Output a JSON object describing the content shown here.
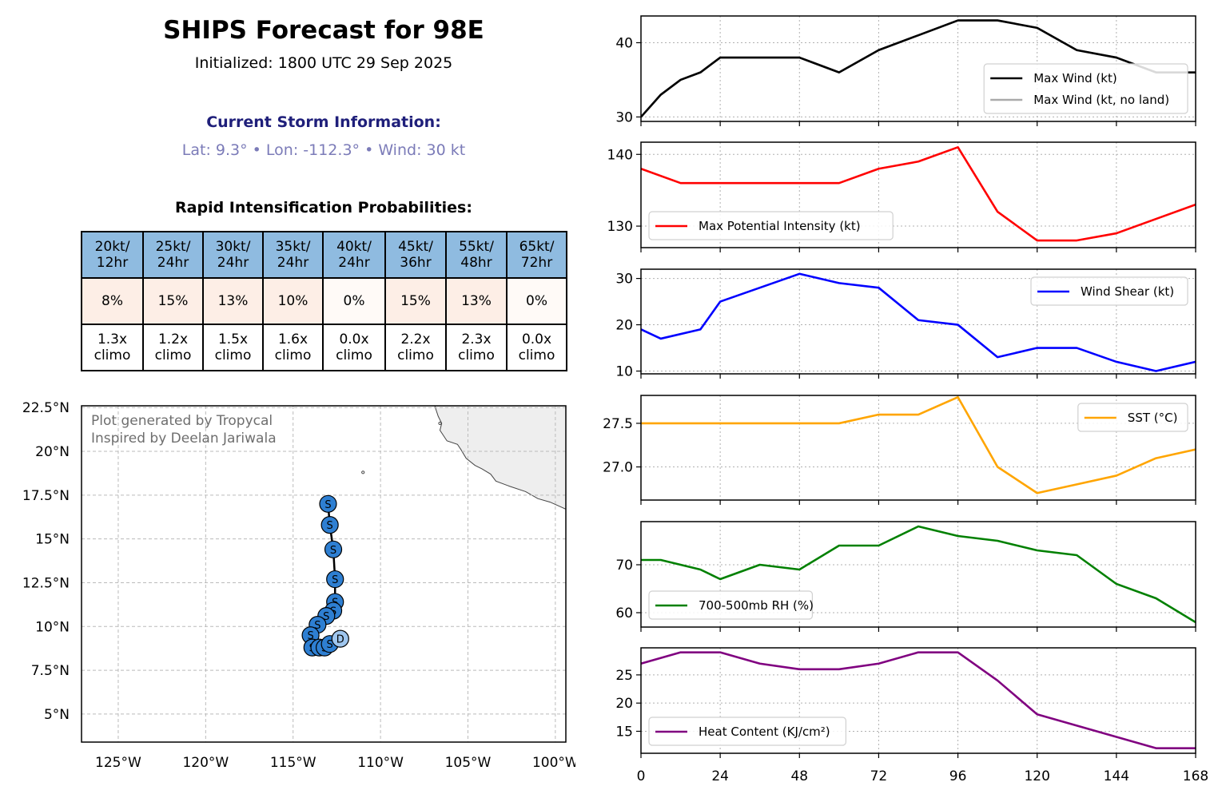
{
  "header": {
    "title": "SHIPS Forecast for 98E",
    "subtitle": "Initialized: 1800 UTC 29 Sep 2025",
    "storm_heading": "Current Storm Information:",
    "storm_info": "Lat: 9.3° • Lon: -112.3° • Wind: 30 kt",
    "ri_heading": "Rapid Intensification Probabilities:"
  },
  "colors": {
    "header_cell": "#8fbbe0",
    "prob_high": "#fdeee6",
    "prob_low": "#fffaf7",
    "storm_heading": "#1f1f7a",
    "storm_info": "#7b7bb8",
    "track_point": "#2e7fd2",
    "track_point_light": "#9fc6ee",
    "land": "#eeeeee"
  },
  "ri_table": {
    "headers": [
      [
        "20kt/",
        "12hr"
      ],
      [
        "25kt/",
        "24hr"
      ],
      [
        "30kt/",
        "24hr"
      ],
      [
        "35kt/",
        "24hr"
      ],
      [
        "40kt/",
        "24hr"
      ],
      [
        "45kt/",
        "36hr"
      ],
      [
        "55kt/",
        "48hr"
      ],
      [
        "65kt/",
        "72hr"
      ]
    ],
    "probabilities": [
      "8%",
      "15%",
      "13%",
      "10%",
      "0%",
      "15%",
      "13%",
      "0%"
    ],
    "prob_shade": [
      "high",
      "high",
      "high",
      "high",
      "low",
      "high",
      "high",
      "low"
    ],
    "climo": [
      [
        "1.3x",
        "climo"
      ],
      [
        "1.2x",
        "climo"
      ],
      [
        "1.5x",
        "climo"
      ],
      [
        "1.6x",
        "climo"
      ],
      [
        "0.0x",
        "climo"
      ],
      [
        "2.2x",
        "climo"
      ],
      [
        "2.3x",
        "climo"
      ],
      [
        "0.0x",
        "climo"
      ]
    ]
  },
  "map": {
    "credit_lines": [
      "Plot generated by Tropycal",
      "Inspired by Deelan Jariwala"
    ],
    "lat_ticks": [
      {
        "v": 5,
        "label": "5°N"
      },
      {
        "v": 7.5,
        "label": "7.5°N"
      },
      {
        "v": 10,
        "label": "10°N"
      },
      {
        "v": 12.5,
        "label": "12.5°N"
      },
      {
        "v": 15,
        "label": "15°N"
      },
      {
        "v": 17.5,
        "label": "17.5°N"
      },
      {
        "v": 20,
        "label": "20°N"
      },
      {
        "v": 22.5,
        "label": "22.5°N"
      }
    ],
    "lon_ticks": [
      {
        "v": -125,
        "label": "125°W"
      },
      {
        "v": -120,
        "label": "120°W"
      },
      {
        "v": -115,
        "label": "115°W"
      },
      {
        "v": -110,
        "label": "110°W"
      },
      {
        "v": -105,
        "label": "105°W"
      },
      {
        "v": -100,
        "label": "100°W"
      }
    ],
    "extent": {
      "lon_min": -127.1,
      "lon_max": -99.4,
      "lat_min": 3.4,
      "lat_max": 22.6
    },
    "track": [
      {
        "lat": 9.3,
        "lon": -112.3,
        "label": "D"
      },
      {
        "lat": 9.0,
        "lon": -112.9,
        "label": "S"
      },
      {
        "lat": 8.8,
        "lon": -113.2,
        "label": "S"
      },
      {
        "lat": 8.8,
        "lon": -113.5,
        "label": "S"
      },
      {
        "lat": 8.8,
        "lon": -113.9,
        "label": "S"
      },
      {
        "lat": 9.5,
        "lon": -114.0,
        "label": "S"
      },
      {
        "lat": 10.1,
        "lon": -113.6,
        "label": "S"
      },
      {
        "lat": 10.6,
        "lon": -113.1,
        "label": "S"
      },
      {
        "lat": 10.9,
        "lon": -112.7,
        "label": "S"
      },
      {
        "lat": 11.4,
        "lon": -112.6,
        "label": "S"
      },
      {
        "lat": 12.7,
        "lon": -112.6,
        "label": "S"
      },
      {
        "lat": 14.4,
        "lon": -112.7,
        "label": "S"
      },
      {
        "lat": 15.8,
        "lon": -112.9,
        "label": "S"
      },
      {
        "lat": 17.0,
        "lon": -113.0,
        "label": "S"
      }
    ],
    "coastline": [
      [
        -106.9,
        22.6
      ],
      [
        -106.7,
        22.0
      ],
      [
        -106.5,
        21.6
      ],
      [
        -106.6,
        21.2
      ],
      [
        -106.2,
        20.6
      ],
      [
        -105.6,
        20.4
      ],
      [
        -105.4,
        20.1
      ],
      [
        -105.1,
        19.6
      ],
      [
        -104.6,
        19.2
      ],
      [
        -104.2,
        19.0
      ],
      [
        -103.7,
        18.7
      ],
      [
        -103.4,
        18.3
      ],
      [
        -102.6,
        18.0
      ],
      [
        -101.7,
        17.7
      ],
      [
        -101.0,
        17.3
      ],
      [
        -100.3,
        17.1
      ],
      [
        -99.4,
        16.7
      ]
    ],
    "islands": [
      {
        "lat": 21.6,
        "lon": -106.6
      },
      {
        "lat": 18.8,
        "lon": -111.0
      }
    ]
  },
  "chart_data": [
    {
      "type": "line",
      "x": [
        0,
        6,
        12,
        18,
        24,
        36,
        48,
        60,
        72,
        84,
        96,
        108,
        120,
        132,
        144,
        156,
        168
      ],
      "series": [
        {
          "name": "Max Wind (kt)",
          "color": "#000000",
          "values": [
            30,
            33,
            35,
            36,
            38,
            38,
            38,
            36,
            39,
            41,
            43,
            43,
            42,
            39,
            38,
            36,
            36
          ]
        },
        {
          "name": "Max Wind (kt, no land)",
          "color": "#aaaaaa",
          "values": [
            30,
            33,
            35,
            36,
            38,
            38,
            38,
            36,
            39,
            41,
            43,
            43,
            42,
            39,
            38,
            36,
            36
          ]
        }
      ],
      "ylim": [
        29.4,
        43.6
      ],
      "yticks": [
        30,
        40
      ],
      "yticklabels": [
        "30",
        "40"
      ],
      "legend": "lower right",
      "grid": true
    },
    {
      "type": "line",
      "x": [
        0,
        12,
        24,
        36,
        48,
        60,
        72,
        84,
        96,
        108,
        120,
        132,
        144,
        156,
        168
      ],
      "series": [
        {
          "name": "Max Potential Intensity (kt)",
          "color": "#ff0000",
          "values": [
            138,
            136,
            136,
            136,
            136,
            136,
            138,
            139,
            141,
            132,
            128,
            128,
            129,
            131,
            133
          ]
        }
      ],
      "ylim": [
        127,
        141.7
      ],
      "yticks": [
        130,
        140
      ],
      "yticklabels": [
        "130",
        "140"
      ],
      "legend": "lower left",
      "grid": true
    },
    {
      "type": "line",
      "x": [
        0,
        6,
        18,
        24,
        36,
        48,
        60,
        72,
        84,
        96,
        108,
        120,
        132,
        144,
        156,
        168
      ],
      "series": [
        {
          "name": "Wind Shear (kt)",
          "color": "#0000ff",
          "values": [
            19,
            17,
            19,
            25,
            28,
            31,
            29,
            28,
            21,
            20,
            13,
            15,
            15,
            12,
            10,
            12
          ]
        }
      ],
      "ylim": [
        9.4,
        32
      ],
      "yticks": [
        10,
        20,
        30
      ],
      "yticklabels": [
        "10",
        "20",
        "30"
      ],
      "legend": "upper right",
      "grid": true
    },
    {
      "type": "line",
      "x": [
        0,
        12,
        24,
        36,
        48,
        60,
        72,
        84,
        96,
        108,
        120,
        132,
        144,
        156,
        168
      ],
      "series": [
        {
          "name": "SST (°C)",
          "color": "#ffa500",
          "values": [
            27.5,
            27.5,
            27.5,
            27.5,
            27.5,
            27.5,
            27.6,
            27.6,
            27.8,
            27.0,
            26.7,
            26.8,
            26.9,
            27.1,
            27.2
          ]
        }
      ],
      "ylim": [
        26.62,
        27.82
      ],
      "yticks": [
        27.0,
        27.5
      ],
      "yticklabels": [
        "27.0",
        "27.5"
      ],
      "legend": "upper right",
      "grid": true
    },
    {
      "type": "line",
      "x": [
        0,
        6,
        18,
        24,
        36,
        48,
        60,
        72,
        84,
        96,
        108,
        120,
        132,
        144,
        156,
        168
      ],
      "series": [
        {
          "name": "700-500mb RH (%)",
          "color": "#008000",
          "values": [
            71,
            71,
            69,
            67,
            70,
            69,
            74,
            74,
            78,
            76,
            75,
            73,
            72,
            66,
            63,
            58
          ]
        }
      ],
      "ylim": [
        57,
        79
      ],
      "yticks": [
        60,
        70
      ],
      "yticklabels": [
        "60",
        "70"
      ],
      "legend": "lower left",
      "grid": true
    },
    {
      "type": "line",
      "x": [
        0,
        12,
        24,
        36,
        48,
        60,
        72,
        84,
        96,
        108,
        120,
        132,
        144,
        156,
        168
      ],
      "series": [
        {
          "name": "Heat Content (KJ/cm²)",
          "color": "#800080",
          "values": [
            27,
            29,
            29,
            27,
            26,
            26,
            27,
            29,
            29,
            24,
            18,
            16,
            14,
            12,
            12
          ]
        }
      ],
      "ylim": [
        11.1,
        29.8
      ],
      "yticks": [
        15,
        20,
        25
      ],
      "yticklabels": [
        "15",
        "20",
        "25"
      ],
      "legend": "lower left",
      "grid": true
    }
  ],
  "xaxis": {
    "ticks": [
      0,
      24,
      48,
      72,
      96,
      120,
      144,
      168
    ],
    "ticklabels": [
      "0",
      "24",
      "48",
      "72",
      "96",
      "120",
      "144",
      "168"
    ],
    "xlim": [
      0,
      168
    ]
  }
}
